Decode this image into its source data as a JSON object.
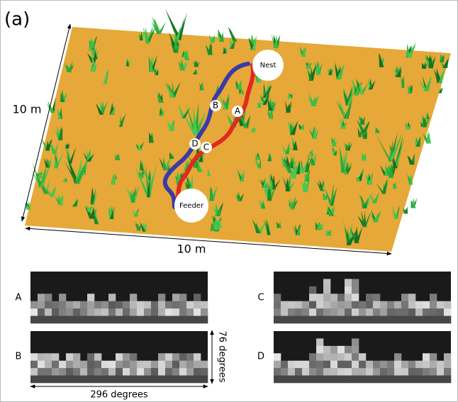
{
  "panel_label": "(a)",
  "scene": {
    "depth_label": "10 m",
    "width_label": "10 m",
    "nest_label": "Nest",
    "feeder_label": "Feeder",
    "waypoints": [
      "A",
      "B",
      "C",
      "D"
    ]
  },
  "views": [
    {
      "label": "A"
    },
    {
      "label": "B"
    },
    {
      "label": "C"
    },
    {
      "label": "D"
    }
  ],
  "view_height_label": "76 degrees",
  "view_width_label": "296 degrees"
}
